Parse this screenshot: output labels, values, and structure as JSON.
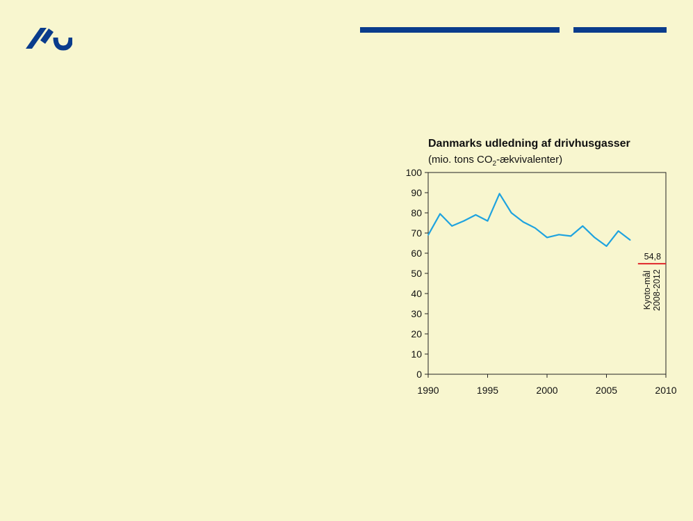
{
  "branding": {
    "logo_icon": "au-logo-icon",
    "accent": "#0a3c8c"
  },
  "chart_data": {
    "type": "line",
    "title": "Danmarks udledning af drivhusgasser",
    "subtitle": {
      "prefix": "(mio. tons CO",
      "subscript": "2",
      "suffix": "-ækvivalenter)"
    },
    "xlim": [
      1990,
      2010
    ],
    "ylim": [
      0,
      100
    ],
    "x_ticks": [
      1990,
      1995,
      2000,
      2005,
      2010
    ],
    "y_ticks": [
      0,
      10,
      20,
      30,
      40,
      50,
      60,
      70,
      80,
      90,
      100
    ],
    "grid": false,
    "series": [
      {
        "color": "#1fa3df",
        "x": [
          1990,
          1991,
          1992,
          1993,
          1994,
          1995,
          1996,
          1997,
          1998,
          1999,
          2000,
          2001,
          2002,
          2003,
          2004,
          2005,
          2006,
          2007
        ],
        "y": [
          69,
          79.5,
          73.5,
          76,
          79,
          76,
          89.5,
          80,
          75.5,
          72.5,
          67.8,
          69.2,
          68.5,
          73.5,
          67.8,
          63.5,
          71,
          66.5
        ]
      }
    ],
    "target": {
      "value": 54.8,
      "value_label": "54,8",
      "x_range": [
        2008,
        2010
      ],
      "label_line1": "Kyoto-mål",
      "label_line2": "2008-2012",
      "color": "#e0262a"
    }
  }
}
